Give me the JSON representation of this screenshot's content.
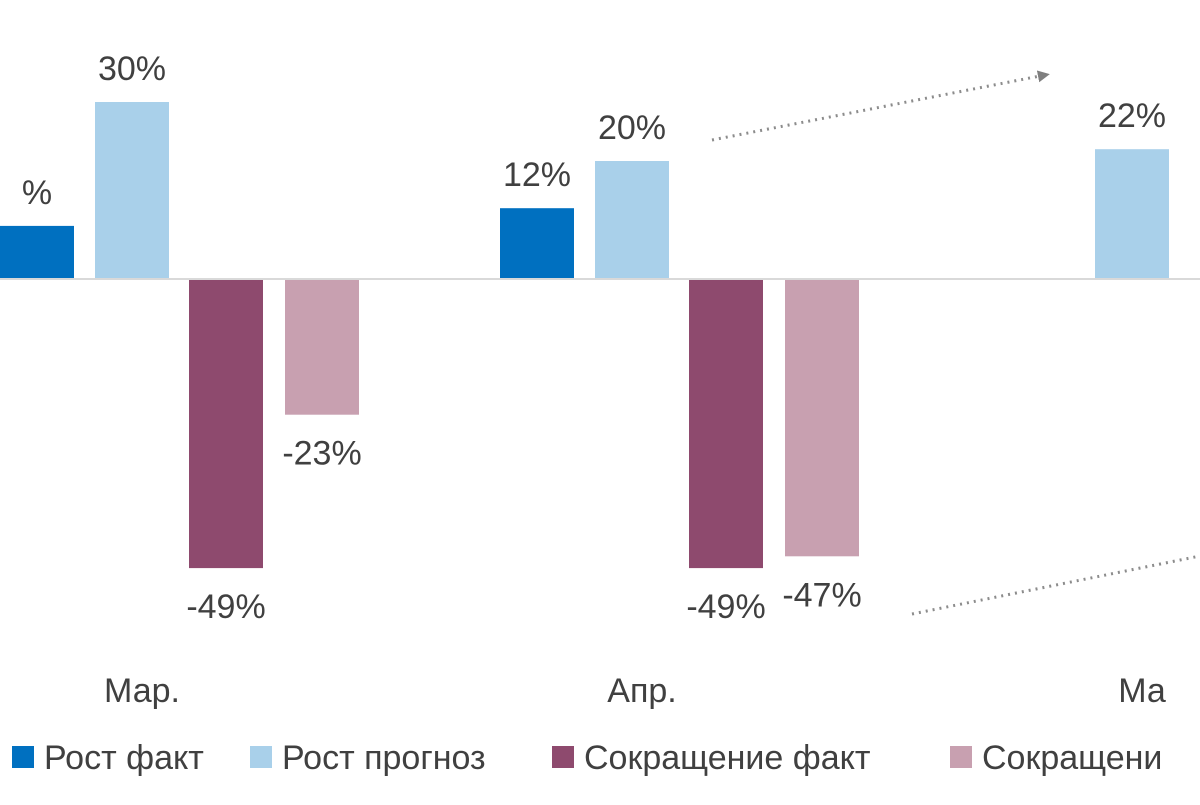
{
  "chart_data": {
    "type": "bar",
    "title": "",
    "xlabel": "",
    "ylabel": "",
    "categories": [
      "Мар.",
      "Апр.",
      "Ма"
    ],
    "ylim": [
      -55,
      35
    ],
    "grid": false,
    "legend_position": "bottom",
    "series": [
      {
        "name": "Рост факт",
        "color": "#0070c0",
        "values": [
          9,
          12,
          null
        ],
        "labels": [
          "%",
          "12%",
          ""
        ]
      },
      {
        "name": "Рост прогноз",
        "color": "#a9d0ea",
        "values": [
          30,
          20,
          22
        ],
        "labels": [
          "30%",
          "20%",
          "22%"
        ]
      },
      {
        "name": "Сокращение факт",
        "color": "#8e4a6e",
        "values": [
          -49,
          -49,
          null
        ],
        "labels": [
          "-49%",
          "-49%",
          ""
        ]
      },
      {
        "name": "Сокращени",
        "color": "#c8a0b0",
        "values": [
          -23,
          -47,
          null
        ],
        "labels": [
          "-23%",
          "-47%",
          ""
        ]
      }
    ],
    "annotations": [
      {
        "type": "arrow",
        "style": "dotted",
        "direction": "up-right"
      },
      {
        "type": "arrow",
        "style": "dotted",
        "direction": "up-right"
      }
    ]
  }
}
